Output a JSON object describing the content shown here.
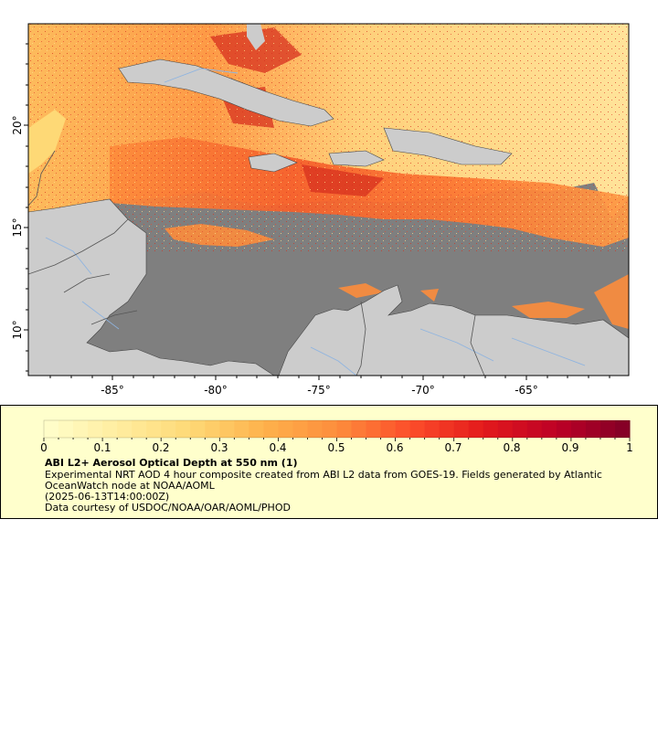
{
  "map": {
    "lat_ticks": [
      "20°",
      "15°",
      "10°"
    ],
    "lon_ticks": [
      "-85°",
      "-80°",
      "-75°",
      "-70°",
      "-65°"
    ],
    "extent": {
      "lon_min": -89,
      "lon_max": -60,
      "lat_min": 8,
      "lat_max": 25
    },
    "colors": {
      "ocean_nodata": "#7f7f7f",
      "land": "#cccccc",
      "rivers": "#8fb4e0",
      "borders": "#555555",
      "coast": "#333333"
    }
  },
  "legend": {
    "ticks": [
      "0",
      "0.1",
      "0.2",
      "0.3",
      "0.4",
      "0.5",
      "0.6",
      "0.7",
      "0.8",
      "0.9",
      "1"
    ],
    "colorscale": [
      "#ffffcc",
      "#ffeda0",
      "#fed976",
      "#feb24c",
      "#fd8d3c",
      "#fc4e2a",
      "#e31a1c",
      "#bd0026",
      "#800026"
    ],
    "title": "ABI L2+ Aerosol Optical Depth at 550 nm (1)",
    "description": "Experimental NRT AOD 4 hour composite created from ABI L2 data from GOES-19. Fields generated by Atlantic OceanWatch node at NOAA/AOML",
    "time": "(2025-06-13T14:00:00Z)",
    "credit": "Data courtesy of USDOC/NOAA/OAR/AOML/PHOD"
  }
}
